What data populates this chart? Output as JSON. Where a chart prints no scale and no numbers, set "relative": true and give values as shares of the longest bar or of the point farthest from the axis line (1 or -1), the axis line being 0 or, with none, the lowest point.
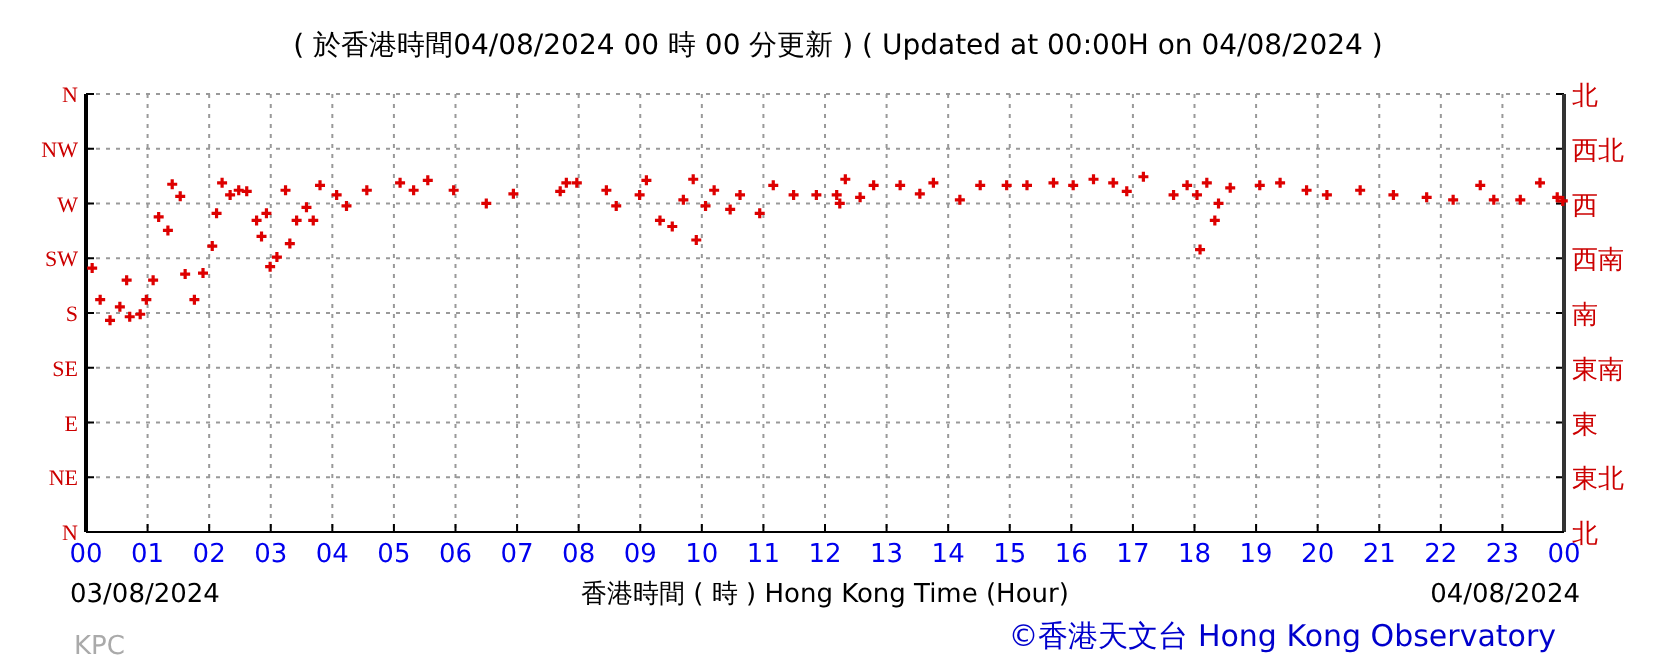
{
  "chart_data": {
    "type": "scatter",
    "title": "( 於香港時間04/08/2024 00 時 00 分更新 ) ( Updated at 00:00H on 04/08/2024 )",
    "xlabel": "香港時間 ( 時 )  Hong Kong Time (Hour)",
    "annotations": [
      "03/08/2024",
      "04/08/2024",
      "KPC",
      "©香港天文台 Hong Kong Observatory"
    ],
    "xlim": [
      0,
      24
    ],
    "xticks": [
      {
        "value": 0,
        "label": "00"
      },
      {
        "value": 1,
        "label": "01"
      },
      {
        "value": 2,
        "label": "02"
      },
      {
        "value": 3,
        "label": "03"
      },
      {
        "value": 4,
        "label": "04"
      },
      {
        "value": 5,
        "label": "05"
      },
      {
        "value": 6,
        "label": "06"
      },
      {
        "value": 7,
        "label": "07"
      },
      {
        "value": 8,
        "label": "08"
      },
      {
        "value": 9,
        "label": "09"
      },
      {
        "value": 10,
        "label": "10"
      },
      {
        "value": 11,
        "label": "11"
      },
      {
        "value": 12,
        "label": "12"
      },
      {
        "value": 13,
        "label": "13"
      },
      {
        "value": 14,
        "label": "14"
      },
      {
        "value": 15,
        "label": "15"
      },
      {
        "value": 16,
        "label": "16"
      },
      {
        "value": 17,
        "label": "17"
      },
      {
        "value": 18,
        "label": "18"
      },
      {
        "value": 19,
        "label": "19"
      },
      {
        "value": 20,
        "label": "20"
      },
      {
        "value": 21,
        "label": "21"
      },
      {
        "value": 22,
        "label": "22"
      },
      {
        "value": 23,
        "label": "23"
      },
      {
        "value": 24,
        "label": "00"
      }
    ],
    "relative": true,
    "y_categories": [
      "N",
      "NW",
      "W",
      "SW",
      "S",
      "SE",
      "E",
      "NE",
      "N"
    ],
    "y2_categories": [
      "北",
      "西北",
      "西",
      "西南",
      "南",
      "東南",
      "東",
      "東北",
      "北"
    ],
    "grid": true,
    "marker": "cross",
    "series": [
      {
        "color": "#dd0000",
        "x": [
          0.1,
          0.23,
          0.39,
          0.55,
          0.66,
          0.71,
          0.88,
          0.98,
          1.09,
          1.18,
          1.33,
          1.4,
          1.53,
          1.61,
          1.76,
          1.9,
          2.05,
          2.12,
          2.21,
          2.34,
          2.48,
          2.61,
          2.77,
          2.85,
          2.93,
          2.99,
          3.1,
          3.24,
          3.31,
          3.42,
          3.58,
          3.69,
          3.8,
          4.07,
          4.23,
          4.56,
          5.1,
          5.32,
          5.55,
          5.97,
          6.5,
          6.94,
          7.7,
          7.8,
          7.97,
          8.45,
          8.61,
          8.99,
          9.1,
          9.32,
          9.52,
          9.7,
          9.86,
          9.91,
          10.06,
          10.2,
          10.46,
          10.62,
          10.94,
          11.16,
          11.49,
          11.86,
          12.19,
          12.24,
          12.33,
          12.57,
          12.79,
          13.22,
          13.54,
          13.76,
          14.19,
          14.52,
          14.95,
          15.28,
          15.71,
          16.03,
          16.36,
          16.68,
          16.9,
          17.17,
          17.66,
          17.88,
          18.04,
          18.09,
          18.2,
          18.33,
          18.39,
          18.58,
          19.06,
          19.39,
          19.82,
          20.15,
          20.69,
          21.23,
          21.77,
          22.2,
          22.64,
          22.86,
          23.29,
          23.61,
          23.89,
          23.98
        ],
        "values": [
          0.743,
          0.654,
          0.596,
          0.634,
          0.709,
          0.606,
          0.613,
          0.654,
          0.709,
          0.887,
          0.849,
          0.979,
          0.945,
          0.726,
          0.654,
          0.729,
          0.805,
          0.897,
          0.983,
          0.949,
          0.962,
          0.959,
          0.877,
          0.832,
          0.897,
          0.747,
          0.774,
          0.962,
          0.812,
          0.877,
          0.914,
          0.877,
          0.976,
          0.949,
          0.918,
          0.962,
          0.983,
          0.962,
          0.99,
          0.962,
          0.925,
          0.952,
          0.959,
          0.983,
          0.983,
          0.962,
          0.918,
          0.949,
          0.99,
          0.877,
          0.86,
          0.935,
          0.993,
          0.822,
          0.918,
          0.962,
          0.908,
          0.949,
          0.897,
          0.976,
          0.949,
          0.949,
          0.949,
          0.925,
          0.993,
          0.942,
          0.976,
          0.976,
          0.952,
          0.983,
          0.935,
          0.976,
          0.976,
          0.976,
          0.983,
          0.976,
          0.993,
          0.983,
          0.959,
          1,
          0.949,
          0.976,
          0.949,
          0.795,
          0.983,
          0.877,
          0.925,
          0.969,
          0.976,
          0.983,
          0.962,
          0.949,
          0.962,
          0.949,
          0.942,
          0.935,
          0.976,
          0.935,
          0.935,
          0.983,
          0.942,
          0.932
        ]
      }
    ]
  }
}
